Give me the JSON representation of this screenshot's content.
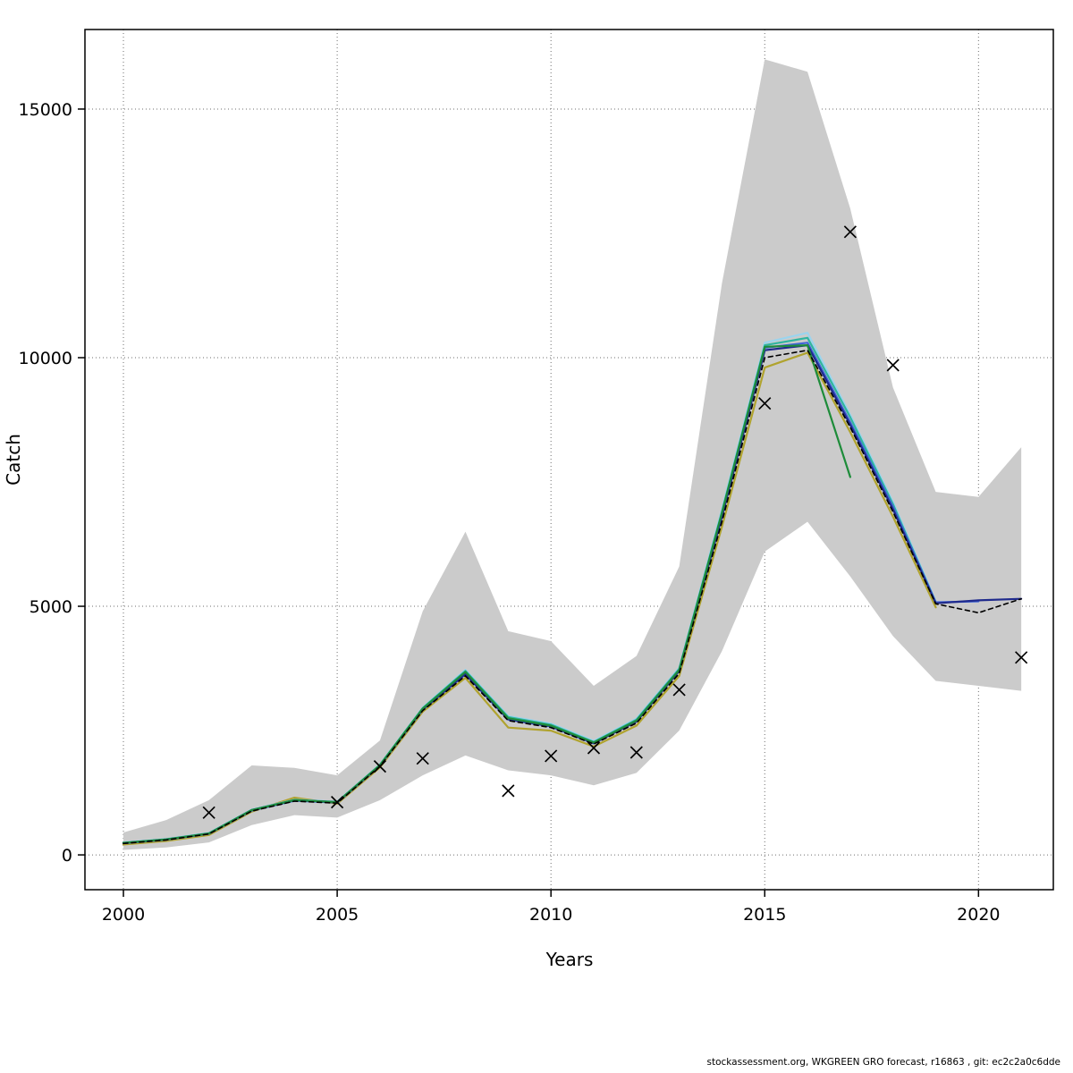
{
  "chart_data": {
    "type": "line",
    "title": "",
    "xlabel": "Years",
    "ylabel": "Catch",
    "footer": "stockassessment.org, WKGREEN GRO forecast, r16863 , git: ec2c2a0c6dde",
    "xlim": [
      1999.1,
      2021.75
    ],
    "ylim": [
      -700,
      16600
    ],
    "xticks": [
      2000,
      2005,
      2010,
      2015,
      2020
    ],
    "yticks": [
      0,
      5000,
      10000,
      15000
    ],
    "grid": "dotted",
    "legend": "none",
    "band": {
      "name": "confidence-interval",
      "color": "#cbcbcb",
      "years": [
        2000,
        2001,
        2002,
        2003,
        2004,
        2005,
        2006,
        2007,
        2008,
        2009,
        2010,
        2011,
        2012,
        2013,
        2014,
        2015,
        2016,
        2017,
        2018,
        2019,
        2020,
        2021
      ],
      "upper": [
        450,
        700,
        1100,
        1800,
        1750,
        1600,
        2300,
        4900,
        6500,
        4500,
        4300,
        3400,
        4000,
        5800,
        11500,
        16000,
        15750,
        13000,
        9400,
        7300,
        7200,
        8200
      ],
      "lower": [
        100,
        150,
        250,
        600,
        800,
        750,
        1100,
        1600,
        2000,
        1700,
        1600,
        1400,
        1650,
        2500,
        4100,
        6100,
        6700,
        5600,
        4400,
        3500,
        3400,
        3300
      ]
    },
    "series": [
      {
        "name": "run-olive",
        "color": "#b0a32e",
        "width": 2.2,
        "years": [
          2000,
          2001,
          2002,
          2003,
          2004,
          2005,
          2006,
          2007,
          2008,
          2009,
          2010,
          2011,
          2012,
          2013,
          2014,
          2015,
          2016,
          2017,
          2018,
          2019
        ],
        "values": [
          210,
          280,
          400,
          870,
          1150,
          1030,
          1760,
          2880,
          3560,
          2560,
          2500,
          2180,
          2600,
          3600,
          6600,
          9800,
          10100,
          8500,
          6800,
          4980
        ]
      },
      {
        "name": "run-lightblue",
        "color": "#9bd4ee",
        "width": 2.2,
        "years": [
          2000,
          2001,
          2002,
          2003,
          2004,
          2005,
          2006,
          2007,
          2008,
          2009,
          2010,
          2011,
          2012,
          2013,
          2014,
          2015,
          2016,
          2017,
          2018,
          2019
        ],
        "values": [
          250,
          320,
          440,
          910,
          1110,
          1070,
          1820,
          2960,
          3720,
          2790,
          2640,
          2290,
          2740,
          3760,
          6950,
          10300,
          10500,
          8850,
          7100,
          5100
        ]
      },
      {
        "name": "run-turquoise",
        "color": "#2fb5a0",
        "width": 2.2,
        "years": [
          2000,
          2001,
          2002,
          2003,
          2004,
          2005,
          2006,
          2007,
          2008,
          2009,
          2010,
          2011,
          2012,
          2013,
          2014,
          2015,
          2016,
          2017,
          2018,
          2019
        ],
        "values": [
          245,
          315,
          435,
          905,
          1105,
          1065,
          1810,
          2950,
          3700,
          2770,
          2620,
          2270,
          2720,
          3740,
          6900,
          10250,
          10400,
          8800,
          7050,
          5080
        ]
      },
      {
        "name": "run-blue",
        "color": "#3f64d7",
        "width": 2.2,
        "years": [
          2000,
          2001,
          2002,
          2003,
          2004,
          2005,
          2006,
          2007,
          2008,
          2009,
          2010,
          2011,
          2012,
          2013,
          2014,
          2015,
          2016,
          2017,
          2018,
          2019,
          2020
        ],
        "values": [
          235,
          305,
          425,
          890,
          1090,
          1050,
          1790,
          2920,
          3630,
          2720,
          2580,
          2240,
          2700,
          3720,
          6850,
          10200,
          10300,
          8700,
          7000,
          5080,
          5100
        ]
      },
      {
        "name": "run-darkblue",
        "color": "#1f2a8c",
        "width": 2.2,
        "years": [
          2000,
          2001,
          2002,
          2003,
          2004,
          2005,
          2006,
          2007,
          2008,
          2009,
          2010,
          2011,
          2012,
          2013,
          2014,
          2015,
          2016,
          2017,
          2018,
          2019,
          2020,
          2021
        ],
        "values": [
          240,
          310,
          430,
          900,
          1100,
          1060,
          1800,
          2930,
          3640,
          2730,
          2590,
          2250,
          2680,
          3700,
          6800,
          10150,
          10250,
          8650,
          6950,
          5060,
          5120,
          5150
        ]
      },
      {
        "name": "run-green",
        "color": "#1e8c3a",
        "width": 2.2,
        "years": [
          2000,
          2001,
          2002,
          2003,
          2004,
          2005,
          2006,
          2007,
          2008,
          2009,
          2010,
          2011,
          2012,
          2013,
          2014,
          2015,
          2016,
          2017
        ],
        "values": [
          240,
          310,
          430,
          900,
          1100,
          1060,
          1805,
          2940,
          3680,
          2750,
          2600,
          2260,
          2700,
          3720,
          6880,
          10220,
          10250,
          7600
        ]
      },
      {
        "name": "forecast-median",
        "color": "#000000",
        "width": 1.6,
        "dash": "5 4",
        "years": [
          2000,
          2001,
          2002,
          2003,
          2004,
          2005,
          2006,
          2007,
          2008,
          2009,
          2010,
          2011,
          2012,
          2013,
          2014,
          2015,
          2016,
          2017,
          2018,
          2019,
          2020,
          2021
        ],
        "values": [
          230,
          300,
          420,
          880,
          1080,
          1040,
          1780,
          2900,
          3600,
          2700,
          2560,
          2230,
          2650,
          3650,
          6700,
          10000,
          10150,
          8600,
          6900,
          5050,
          4870,
          5150
        ]
      }
    ],
    "observations": {
      "name": "observed-catch",
      "marker": "x",
      "color": "#000000",
      "years": [
        2002,
        2005,
        2006,
        2007,
        2009,
        2010,
        2011,
        2012,
        2013,
        2015,
        2017,
        2018,
        2021
      ],
      "values": [
        850,
        1060,
        1780,
        1940,
        1290,
        1990,
        2150,
        2060,
        3320,
        9080,
        12530,
        9850,
        3970
      ]
    }
  }
}
